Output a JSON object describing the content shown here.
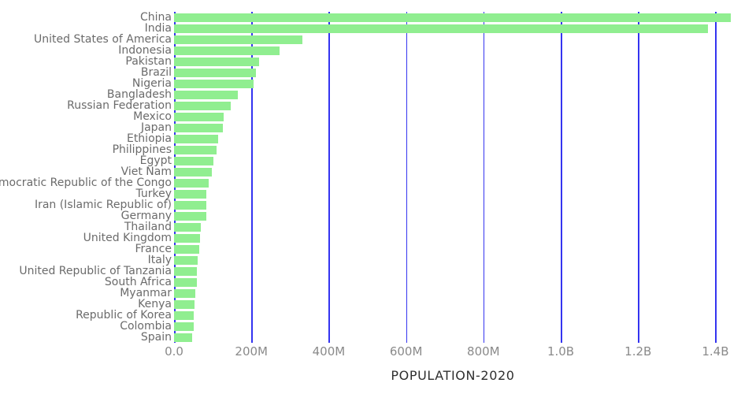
{
  "chart_data": {
    "type": "bar",
    "orientation": "horizontal",
    "title": "",
    "xlabel": "POPULATION-2020",
    "ylabel": "",
    "value_unit": "millions",
    "xlim_millions": [
      0,
      1505
    ],
    "grid": true,
    "legend": false,
    "categories": [
      "China",
      "India",
      "United States of America",
      "Indonesia",
      "Pakistan",
      "Brazil",
      "Nigeria",
      "Bangladesh",
      "Russian Federation",
      "Mexico",
      "Japan",
      "Ethiopia",
      "Philippines",
      "Egypt",
      "Viet Nam",
      "Democratic Republic of the Congo",
      "Turkey",
      "Iran (Islamic Republic of)",
      "Germany",
      "Thailand",
      "United Kingdom",
      "France",
      "Italy",
      "United Republic of Tanzania",
      "South Africa",
      "Myanmar",
      "Kenya",
      "Republic of Korea",
      "Colombia",
      "Spain"
    ],
    "values_millions": [
      1439.3,
      1380.0,
      331.0,
      273.5,
      220.9,
      212.6,
      206.1,
      164.7,
      145.9,
      128.9,
      126.5,
      115.0,
      109.6,
      102.3,
      97.3,
      89.6,
      84.3,
      84.0,
      83.8,
      69.8,
      67.9,
      65.3,
      60.5,
      59.7,
      59.3,
      54.4,
      53.8,
      51.3,
      50.9,
      46.8
    ],
    "x_ticks": [
      {
        "label": "0.0",
        "value_millions": 0
      },
      {
        "label": "200M",
        "value_millions": 200
      },
      {
        "label": "400M",
        "value_millions": 400
      },
      {
        "label": "600M",
        "value_millions": 600
      },
      {
        "label": "800M",
        "value_millions": 800
      },
      {
        "label": "1.0B",
        "value_millions": 1000
      },
      {
        "label": "1.2B",
        "value_millions": 1200
      },
      {
        "label": "1.4B",
        "value_millions": 1400
      }
    ],
    "colors": {
      "bar": "#90EE90",
      "gridline": "#3434f0",
      "category_label": "#6b6b6b",
      "tick_label": "#8a8a8a",
      "axis_title": "#2f2f2f",
      "background": "#ffffff"
    }
  }
}
